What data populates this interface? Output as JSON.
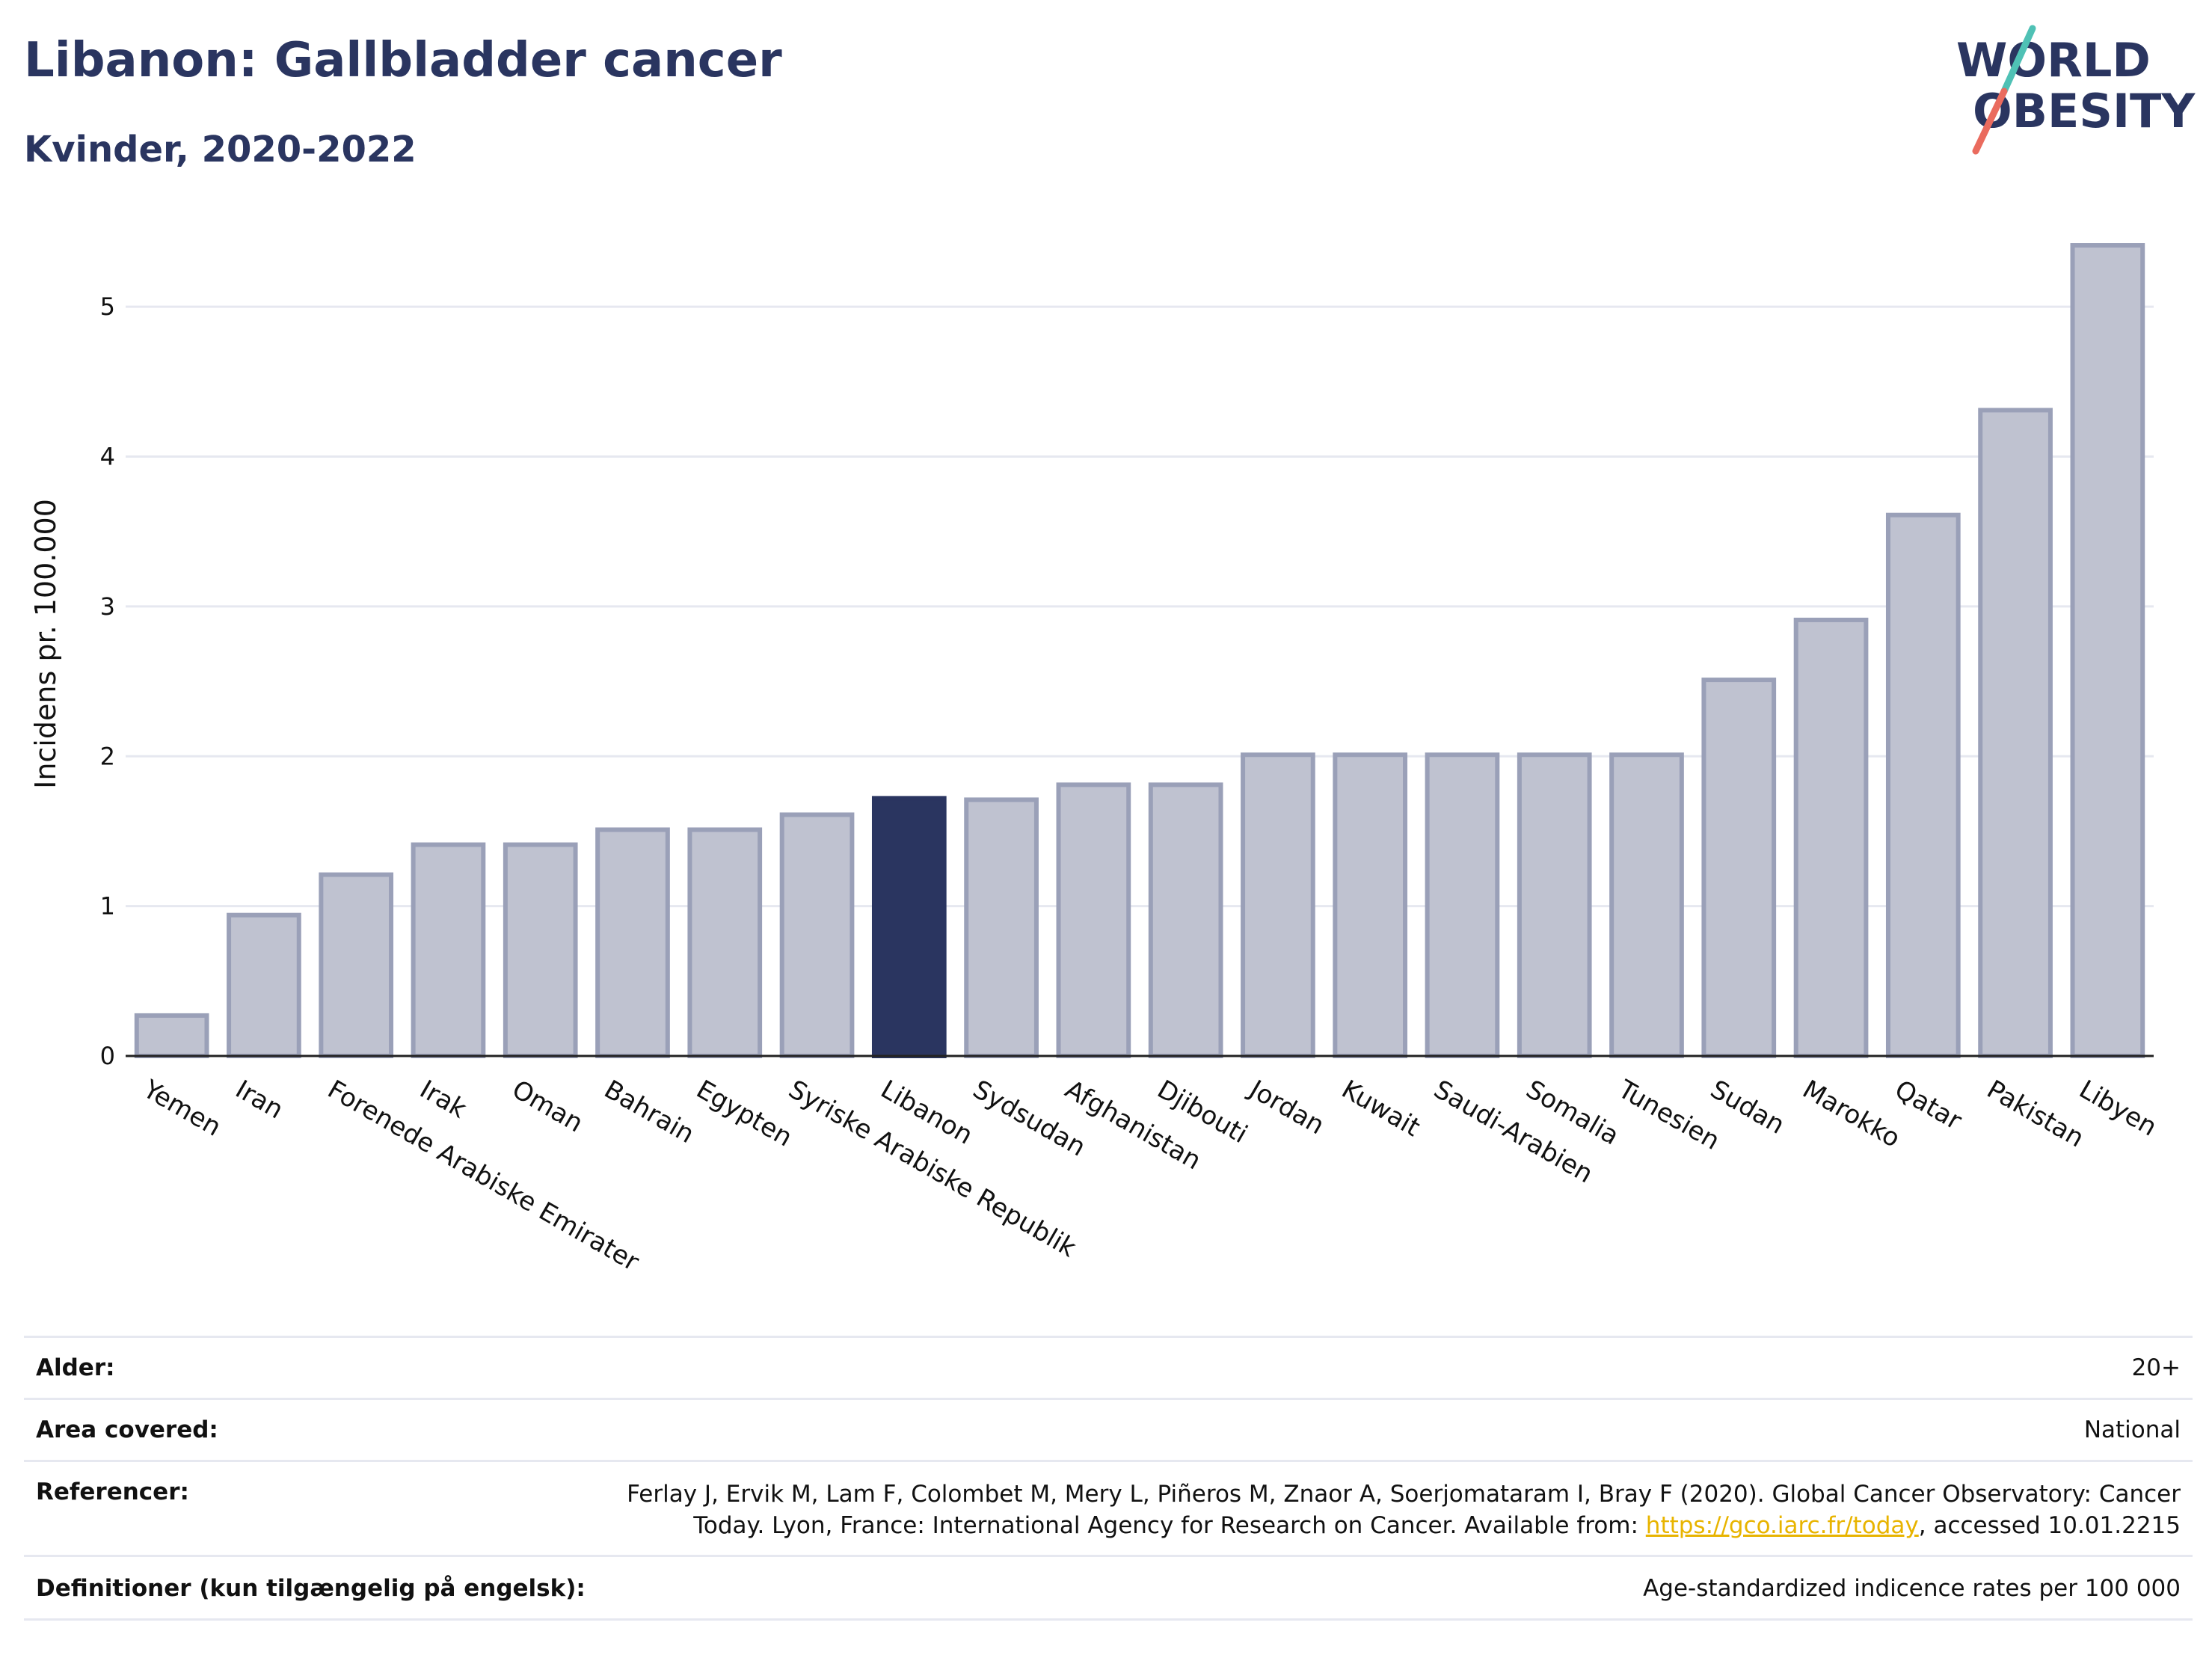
{
  "header": {
    "title": "Libanon: Gallbladder cancer",
    "subtitle": "Kvinder, 2020-2022",
    "logo_line1": "WORLD",
    "logo_line2": "OBESITY"
  },
  "colors": {
    "bar": "#bfc2d0",
    "bar_stroke": "#9aa0b8",
    "highlight": "#2a3560",
    "title": "#2a3560",
    "grid": "#e6e8f0",
    "link": "#e8b400",
    "logo_teal": "#4fc1b5",
    "logo_coral": "#ea6b5e"
  },
  "chart_data": {
    "type": "bar",
    "title": "Libanon: Gallbladder cancer",
    "subtitle": "Kvinder, 2020-2022",
    "xlabel": "",
    "ylabel": "Incidens pr. 100.000",
    "ylim": [
      0,
      5.5
    ],
    "yticks": [
      0,
      1,
      2,
      3,
      4,
      5
    ],
    "grid": true,
    "highlight_category": "Libanon",
    "categories": [
      "Yemen",
      "Iran",
      "Forenede Arabiske Emirater",
      "Irak",
      "Oman",
      "Bahrain",
      "Egypten",
      "Syriske Arabiske Republik",
      "Libanon",
      "Sydsudan",
      "Afghanistan",
      "Djibouti",
      "Jordan",
      "Kuwait",
      "Saudi-Arabien",
      "Somalia",
      "Tunesien",
      "Sudan",
      "Marokko",
      "Qatar",
      "Pakistan",
      "Libyen"
    ],
    "values": [
      0.27,
      0.94,
      1.21,
      1.41,
      1.41,
      1.51,
      1.51,
      1.61,
      1.72,
      1.71,
      1.81,
      1.81,
      2.01,
      2.01,
      2.01,
      2.01,
      2.01,
      2.51,
      2.91,
      3.61,
      4.31,
      5.41
    ]
  },
  "info": {
    "age_label": "Alder:",
    "age_value": "20+",
    "area_label": "Area covered:",
    "area_value": "National",
    "ref_label": "Referencer:",
    "ref_line1": "Ferlay J, Ervik M, Lam F, Colombet M, Mery L, Piñeros M, Znaor A, Soerjomataram I, Bray F (2020). Global Cancer Observatory: Cancer",
    "ref_line2_pre": "Today. Lyon, France: International Agency for Research on Cancer. Available from: ",
    "ref_link": "https://gco.iarc.fr/today",
    "ref_line2_post": ", accessed 10.01.2215",
    "def_label": "Definitioner (kun tilgængelig på engelsk):",
    "def_value": "Age-standardized indicence rates per 100 000"
  }
}
